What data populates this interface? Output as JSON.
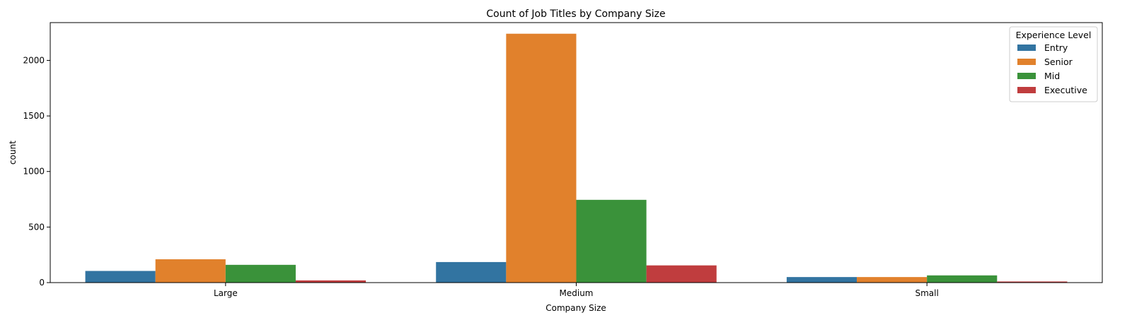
{
  "chart_data": {
    "type": "bar",
    "title": "Count of Job Titles by Company Size",
    "xlabel": "Company Size",
    "ylabel": "count",
    "categories": [
      "Large",
      "Medium",
      "Small"
    ],
    "series": [
      {
        "name": "Entry",
        "color": "#3274a1",
        "values": [
          105,
          185,
          50
        ]
      },
      {
        "name": "Senior",
        "color": "#e1812c",
        "values": [
          210,
          2240,
          50
        ]
      },
      {
        "name": "Mid",
        "color": "#3a923a",
        "values": [
          160,
          745,
          65
        ]
      },
      {
        "name": "Executive",
        "color": "#c03d3e",
        "values": [
          20,
          155,
          10
        ]
      }
    ],
    "ylim": [
      0,
      2340
    ],
    "yticks": [
      0,
      500,
      1000,
      1500,
      2000
    ],
    "grid": false,
    "legend": {
      "title": "Experience Level",
      "placement": "top-right"
    }
  }
}
